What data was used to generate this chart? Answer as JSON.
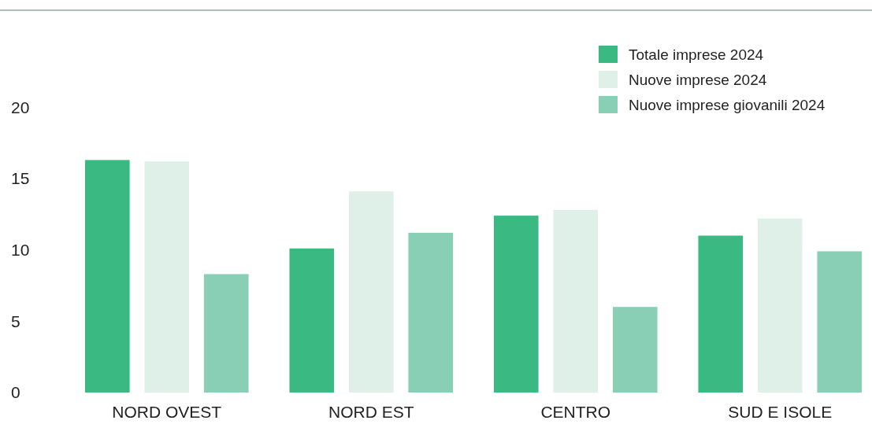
{
  "chart_data": {
    "type": "bar",
    "categories": [
      "NORD OVEST",
      "NORD EST",
      "CENTRO",
      "SUD E ISOLE"
    ],
    "series": [
      {
        "name": "Totale imprese 2024",
        "color": "#3aba82",
        "values": [
          16.3,
          10.1,
          12.4,
          11.0
        ]
      },
      {
        "name": "Nuove imprese 2024",
        "color": "#dff0e8",
        "values": [
          16.2,
          14.1,
          12.8,
          12.2
        ]
      },
      {
        "name": "Nuove imprese giovanili 2024",
        "color": "#88cfb6",
        "values": [
          8.3,
          11.2,
          6.0,
          9.9
        ]
      }
    ],
    "ylim": [
      0,
      26.8
    ],
    "yticks": [
      0,
      5,
      10,
      15,
      20
    ],
    "grid": false,
    "legend": "top right"
  }
}
